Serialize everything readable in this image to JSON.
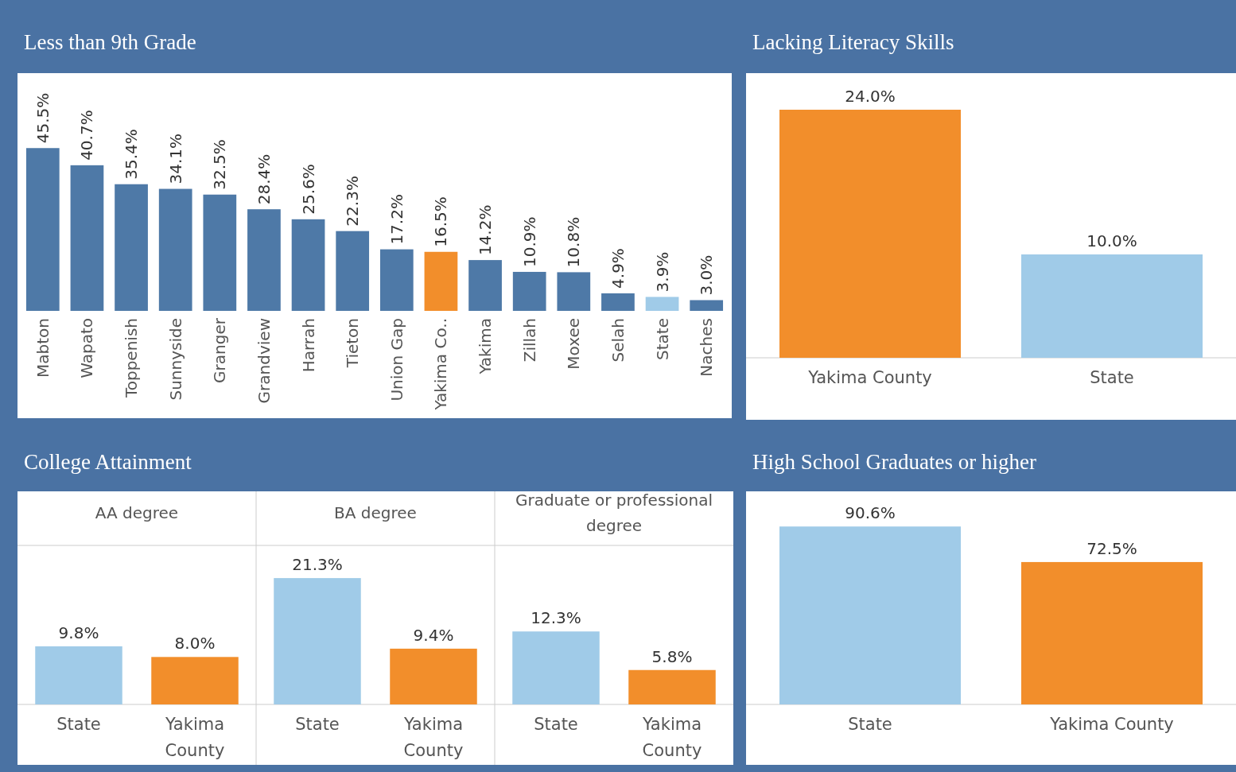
{
  "chart_data": [
    {
      "type": "bar",
      "title": "Less than 9th Grade",
      "categories": [
        "Mabton",
        "Wapato",
        "Toppenish",
        "Sunnyside",
        "Granger",
        "Grandview",
        "Harrah",
        "Tieton",
        "Union Gap",
        "Yakima Co..",
        "Yakima",
        "Zillah",
        "Moxee",
        "Selah",
        "State",
        "Naches"
      ],
      "values": [
        45.5,
        40.7,
        35.4,
        34.1,
        32.5,
        28.4,
        25.6,
        22.3,
        17.2,
        16.5,
        14.2,
        10.9,
        10.8,
        4.9,
        3.9,
        3.0
      ],
      "colors": [
        "#4e79a7",
        "#4e79a7",
        "#4e79a7",
        "#4e79a7",
        "#4e79a7",
        "#4e79a7",
        "#4e79a7",
        "#4e79a7",
        "#4e79a7",
        "#f28e2b",
        "#4e79a7",
        "#4e79a7",
        "#4e79a7",
        "#4e79a7",
        "#a0cbe8",
        "#4e79a7"
      ],
      "value_labels": [
        "45.5%",
        "40.7%",
        "35.4%",
        "34.1%",
        "32.5%",
        "28.4%",
        "25.6%",
        "22.3%",
        "17.2%",
        "16.5%",
        "14.2%",
        "10.9%",
        "10.8%",
        "4.9%",
        "3.9%",
        "3.0%"
      ]
    },
    {
      "type": "bar",
      "title": "Lacking Literacy Skills",
      "categories": [
        "Yakima County",
        "State"
      ],
      "values": [
        24.0,
        10.0
      ],
      "colors": [
        "#f28e2b",
        "#a0cbe8"
      ],
      "value_labels": [
        "24.0%",
        "10.0%"
      ]
    },
    {
      "type": "bar",
      "title": "College Attainment",
      "subtitle": "AA degree",
      "categories": [
        "State",
        "Yakima County"
      ],
      "values": [
        9.8,
        8.0
      ],
      "colors": [
        "#a0cbe8",
        "#f28e2b"
      ],
      "value_labels": [
        "9.8%",
        "8.0%"
      ]
    },
    {
      "type": "bar",
      "subtitle": "BA degree",
      "categories": [
        "State",
        "Yakima County"
      ],
      "values": [
        21.3,
        9.4
      ],
      "colors": [
        "#a0cbe8",
        "#f28e2b"
      ],
      "value_labels": [
        "21.3%",
        "9.4%"
      ]
    },
    {
      "type": "bar",
      "subtitle": "Graduate or professional degree",
      "categories": [
        "State",
        "Yakima County"
      ],
      "values": [
        12.3,
        5.8
      ],
      "colors": [
        "#a0cbe8",
        "#f28e2b"
      ],
      "value_labels": [
        "12.3%",
        "5.8%"
      ]
    },
    {
      "type": "bar",
      "title": "High School Graduates or higher",
      "categories": [
        "State",
        "Yakima County"
      ],
      "values": [
        90.6,
        72.5
      ],
      "colors": [
        "#a0cbe8",
        "#f28e2b"
      ],
      "value_labels": [
        "90.6%",
        "72.5%"
      ]
    }
  ]
}
